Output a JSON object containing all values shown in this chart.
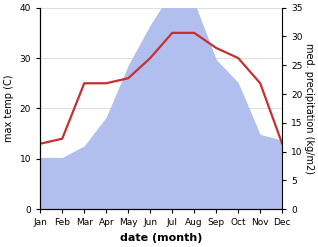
{
  "months": [
    "Jan",
    "Feb",
    "Mar",
    "Apr",
    "May",
    "Jun",
    "Jul",
    "Aug",
    "Sep",
    "Oct",
    "Nov",
    "Dec"
  ],
  "precipitation": [
    9,
    9,
    11,
    16,
    25,
    32,
    38,
    36,
    26,
    22,
    13,
    12
  ],
  "max_temp": [
    13,
    14,
    25,
    25,
    26,
    30,
    35,
    35,
    32,
    30,
    25,
    13
  ],
  "precip_color": "#b0bfee",
  "temp_color": "#c83030",
  "ylabel_left": "max temp (C)",
  "ylabel_right": "med. precipitation (kg/m2)",
  "xlabel": "date (month)",
  "ylim_left": [
    0,
    40
  ],
  "ylim_right": [
    0,
    35
  ],
  "yticks_left": [
    0,
    10,
    20,
    30,
    40
  ],
  "yticks_right": [
    0,
    5,
    10,
    15,
    20,
    25,
    30,
    35
  ],
  "background_color": "#ffffff",
  "grid_color": "#d0d0d0"
}
